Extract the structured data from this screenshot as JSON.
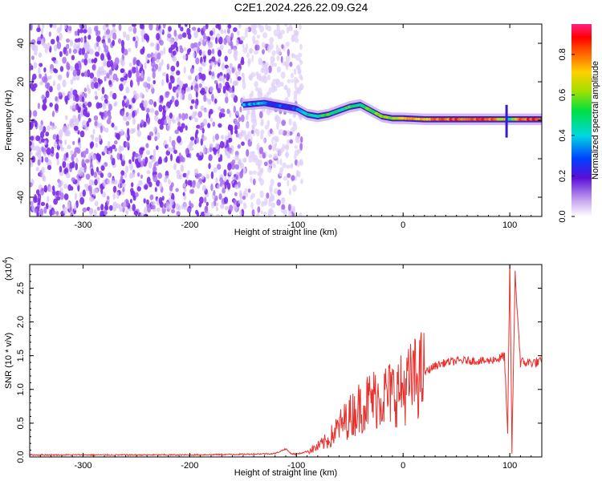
{
  "title": "C2E1.2024.226.22.09.G24",
  "chart_data": [
    {
      "type": "heatmap",
      "xlabel": "Height of straight line (km)",
      "ylabel": "Frequency (Hz)",
      "xlim": [
        -350,
        130
      ],
      "ylim": [
        -50,
        50
      ],
      "x_ticks": [
        -300,
        -200,
        -100,
        0,
        100
      ],
      "x_tick_labels": [
        "-300",
        "-200",
        "-100",
        "0",
        "100"
      ],
      "y_ticks": [
        -40,
        -20,
        0,
        20,
        40
      ],
      "y_tick_labels": [
        "-40",
        "-20",
        "0",
        "20",
        "40"
      ],
      "colorbar": {
        "label": "Normalized spectral amplitude",
        "range": [
          0,
          0.95
        ],
        "ticks": [
          0.0,
          0.2,
          0.4,
          0.6,
          0.8
        ],
        "tick_labels": [
          "0.0",
          "0.2",
          "0.4",
          "0.6",
          "0.8"
        ]
      },
      "noise_regions": [
        {
          "x": [
            -350,
            -150
          ],
          "density": "high"
        },
        {
          "x": [
            -150,
            -95
          ],
          "density": "medium"
        }
      ],
      "signal_track": {
        "x": [
          -150,
          -140,
          -130,
          -120,
          -100,
          -90,
          -80,
          -70,
          -60,
          -50,
          -40,
          -30,
          -20,
          -10,
          0,
          20,
          40,
          60,
          80,
          95,
          100,
          110,
          130
        ],
        "y": [
          8,
          8.5,
          9,
          8,
          6,
          3,
          2,
          3,
          5,
          7,
          8,
          5,
          2,
          1,
          1,
          0.5,
          0.5,
          0.5,
          0.5,
          0.5,
          0.5,
          0.5,
          0.5
        ],
        "amp": [
          0.35,
          0.4,
          0.35,
          0.3,
          0.3,
          0.45,
          0.5,
          0.55,
          0.5,
          0.55,
          0.5,
          0.6,
          0.6,
          0.65,
          0.7,
          0.8,
          0.85,
          0.85,
          0.85,
          0.7,
          0.5,
          0.85,
          0.9
        ]
      }
    },
    {
      "type": "line",
      "xlabel": "Height of straight line (km)",
      "ylabel": "SNR (10 * v/v)",
      "yscale_label": "(x10",
      "yscale_exp": "4",
      "xlim": [
        -350,
        130
      ],
      "ylim": [
        0,
        2.85
      ],
      "x_ticks": [
        -300,
        -200,
        -100,
        0,
        100
      ],
      "x_tick_labels": [
        "-300",
        "-200",
        "-100",
        "0",
        "100"
      ],
      "y_ticks": [
        0.0,
        0.5,
        1.0,
        1.5,
        2.0,
        2.5
      ],
      "y_tick_labels": [
        "0.0",
        "0.5",
        "1.0",
        "1.5",
        "2.0",
        "2.5"
      ],
      "color": "#e8302c",
      "series": [
        {
          "x": [
            -350,
            -300,
            -250,
            -200,
            -150,
            -120,
            -110,
            -105,
            -100,
            -90,
            -80,
            -70,
            -60,
            -50,
            -40,
            -30,
            -20,
            -10,
            0,
            10,
            20,
            30,
            40,
            50,
            60,
            70,
            80,
            85,
            90,
            95,
            98,
            100,
            102,
            105,
            110,
            120,
            130
          ],
          "y": [
            0.03,
            0.03,
            0.03,
            0.03,
            0.04,
            0.05,
            0.12,
            0.05,
            0.04,
            0.08,
            0.15,
            0.25,
            0.45,
            0.6,
            0.75,
            0.85,
            0.9,
            0.95,
            1.0,
            1.15,
            1.25,
            1.35,
            1.4,
            1.42,
            1.43,
            1.42,
            1.42,
            1.45,
            1.45,
            1.5,
            0.3,
            2.9,
            0.1,
            2.7,
            1.4,
            1.4,
            1.4
          ]
        }
      ]
    }
  ]
}
